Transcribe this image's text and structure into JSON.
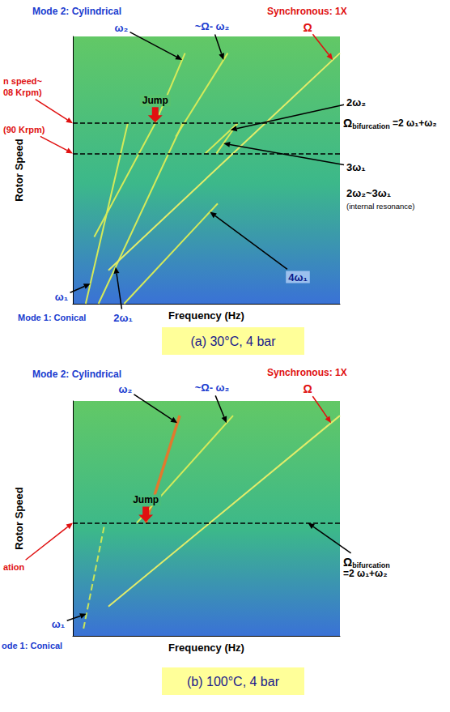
{
  "chart_data": [
    {
      "type": "line",
      "caption": "(a) 30°C, 4 bar",
      "xlabel": "Frequency (Hz)",
      "ylabel": "Rotor Speed",
      "xlim": [
        0,
        2500
      ],
      "ylim": [
        0,
        160
      ],
      "tick_labels": false,
      "grid": false,
      "line_style": "solid",
      "hlines": [
        108,
        90
      ],
      "series": [
        {
          "name": "ω₁",
          "color": "#d4ea5a",
          "values": [
            [
              120,
              0
            ],
            [
              514,
              108
            ]
          ]
        },
        {
          "name": "2ω₁",
          "color": "#d4ea5a",
          "values": [
            [
              240,
              0
            ],
            [
              1028,
              108
            ]
          ]
        },
        {
          "name": "4ω₁",
          "color": "#d4ea5a",
          "values": [
            [
              480,
              0
            ],
            [
              1356,
              60
            ]
          ]
        },
        {
          "name": "3ω₁",
          "color": "#d4ea5a",
          "values": [
            [
              1344,
              90
            ],
            [
              1542,
              108
            ]
          ]
        },
        {
          "name": "ω₂",
          "color": "#d4ea5a",
          "values": [
            [
              200,
              40
            ],
            [
              771,
              108
            ],
            [
              1050,
              150
            ]
          ]
        },
        {
          "name": "2ω₂",
          "color": "#d4ea5a",
          "values": [
            [
              1240,
              90
            ],
            [
              1542,
              108
            ]
          ]
        },
        {
          "name": "~Ω- ω₂",
          "color": "#d4ea5a",
          "values": [
            [
              963,
              100
            ],
            [
              1450,
              150
            ]
          ]
        },
        {
          "name": "Ω",
          "color": "#e2ec6a",
          "values": [
            [
              333,
              20
            ],
            [
              1800,
              108
            ],
            [
              2500,
              150
            ]
          ]
        }
      ],
      "annotations": [
        {
          "text": "Mode 2: Cylindrical",
          "color": "#1a3ccf"
        },
        {
          "text": "Synchronous: 1X",
          "color": "#e01010"
        },
        {
          "text": "n speed~",
          "color": "#e01010"
        },
        {
          "text": "08 Krpm)",
          "color": "#e01010"
        },
        {
          "text": "(90 Krpm)",
          "color": "#e01010"
        },
        {
          "text": "Jump",
          "color": "#000000"
        },
        {
          "text": "2ω₂~3ω₁",
          "color": "#000000"
        },
        {
          "text": "(internal resonance)",
          "color": "#000000"
        },
        {
          "text": "Mode 1: Conical",
          "color": "#1a3ccf"
        }
      ],
      "bifurcation_label": {
        "symbol": "Ω",
        "subscript": "bifurcation",
        "equation": "=2 ω₁+ω₂"
      }
    },
    {
      "type": "line",
      "caption": "(b) 100°C, 4 bar",
      "xlabel": "Frequency (Hz)",
      "ylabel": "Rotor Speed",
      "xlim": [
        0,
        2500
      ],
      "ylim": [
        0,
        160
      ],
      "tick_labels": false,
      "grid": false,
      "line_style": "solid",
      "hlines": [
        77
      ],
      "series": [
        {
          "name": "ω₁",
          "color": "#c8e65a",
          "line_style": "dashed",
          "values": [
            [
              100,
              5
            ],
            [
              300,
              77
            ]
          ]
        },
        {
          "name": "ω₂",
          "color": "#e07a2e",
          "values": [
            [
              683,
              77
            ],
            [
              1000,
              150
            ]
          ]
        },
        {
          "name": "~Ω- ω₂",
          "color": "#d4ea5a",
          "values": [
            [
              600,
              77
            ],
            [
              1500,
              150
            ]
          ]
        },
        {
          "name": "Ω",
          "color": "#e2ec6a",
          "values": [
            [
              333,
              20
            ],
            [
              1283,
              77
            ],
            [
              2500,
              150
            ]
          ]
        }
      ],
      "annotations": [
        {
          "text": "Mode 2: Cylindrical",
          "color": "#1a3ccf"
        },
        {
          "text": "Synchronous: 1X",
          "color": "#e01010"
        },
        {
          "text": "ation",
          "color": "#e01010"
        },
        {
          "text": "Jump",
          "color": "#000000"
        },
        {
          "text": "ode 1: Conical",
          "color": "#1a3ccf"
        }
      ],
      "bifurcation_label": {
        "symbol": "Ω",
        "subscript": "bifurcation",
        "equation": "=2 ω₁+ω₂"
      }
    }
  ]
}
